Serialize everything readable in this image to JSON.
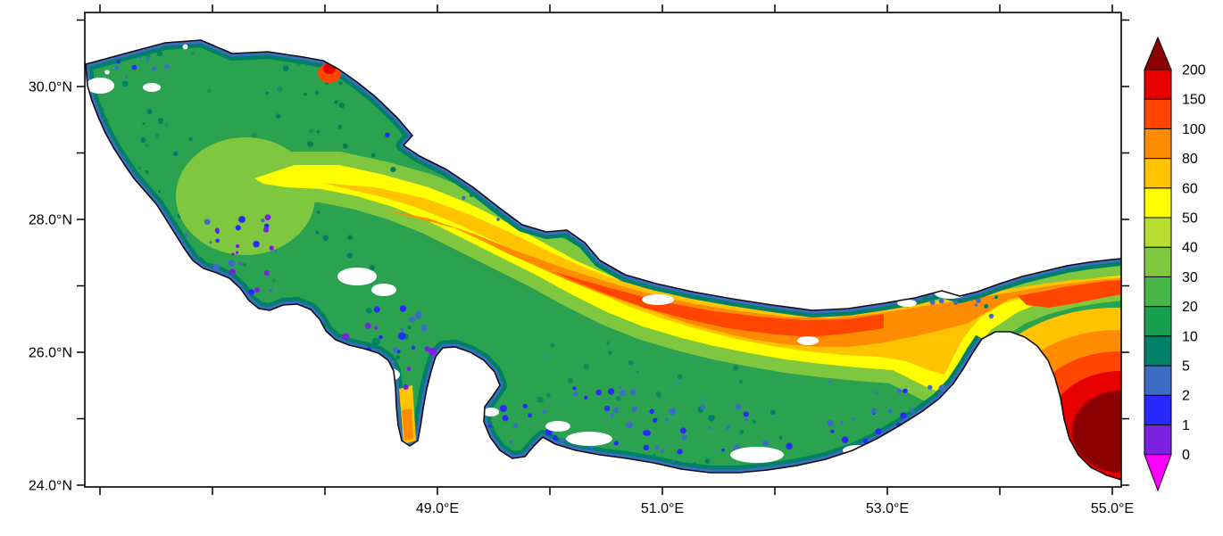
{
  "figure": {
    "title": "",
    "kind": "filled contour map with discrete colorbar",
    "region_depicted": "Persian Gulf, Strait of Hormuz and western Gulf of Oman",
    "background_color": "#ffffff"
  },
  "chart_data": {
    "type": "heatmap",
    "title": "",
    "xlabel": "",
    "ylabel": "",
    "x_tick_labels": [
      "49.0°E",
      "51.0°E",
      "53.0°E",
      "55.0°E"
    ],
    "x_tick_lons": [
      49,
      51,
      53,
      55
    ],
    "x_minor_tick_lons": [
      46,
      47,
      48,
      50,
      52,
      54,
      55
    ],
    "y_tick_labels": [
      "30.0°N",
      "28.0°N",
      "26.0°N",
      "24.0°N"
    ],
    "y_tick_lats": [
      30,
      28,
      26,
      24
    ],
    "y_minor_tick_lats": [
      24,
      25,
      26,
      27,
      28,
      29,
      30,
      31
    ],
    "grid": false,
    "colorbar": {
      "orientation": "vertical-right",
      "tick_labels": [
        "0",
        "1",
        "2",
        "5",
        "10",
        "20",
        "30",
        "40",
        "50",
        "60",
        "80",
        "100",
        "150",
        "200"
      ],
      "levels": [
        0,
        1,
        2,
        5,
        10,
        20,
        30,
        40,
        50,
        60,
        80,
        100,
        150,
        200
      ],
      "colors_bottom_to_top": [
        "#ff00ff",
        "#7a22e0",
        "#2929ff",
        "#3d6cc4",
        "#008066",
        "#18a050",
        "#46b649",
        "#7fc73f",
        "#b8dc30",
        "#ffff00",
        "#ffc300",
        "#ff8c00",
        "#ff4500",
        "#e60000",
        "#8b0000"
      ],
      "has_upper_arrow": true,
      "has_lower_arrow": true
    },
    "field_regions": [
      {
        "region": "coastal fringes along both shores",
        "approx_value": "0-10"
      },
      {
        "region": "north-western basin interior",
        "approx_value": "10-40"
      },
      {
        "region": "central along-axis band",
        "approx_value": "40-80"
      },
      {
        "region": "deep axis toward Strait of Hormuz (north-central, east half)",
        "approx_value": "80-150"
      },
      {
        "region": "shallow banks around Bahrain, Qatar and the southern coast",
        "approx_value": "0-5"
      },
      {
        "region": "western Gulf of Oman (bottom-right corner)",
        "approx_value": "150-200+"
      },
      {
        "region": "narrow inlet west of Qatar peninsula",
        "approx_value": "60-100"
      }
    ]
  }
}
